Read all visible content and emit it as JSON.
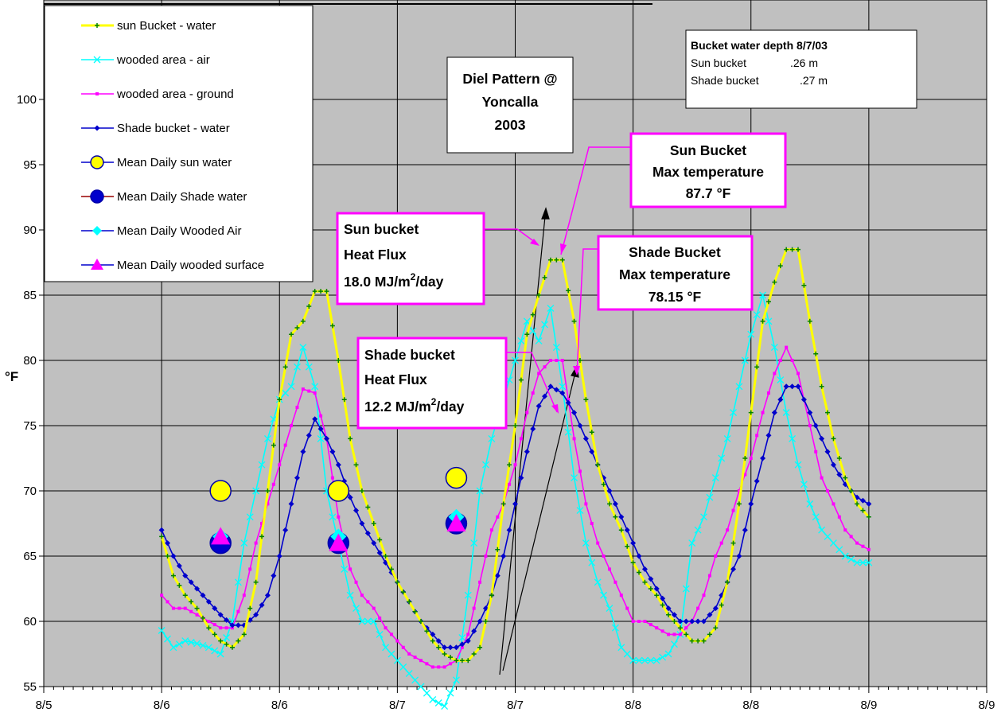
{
  "chart_data": {
    "type": "line",
    "title": "",
    "xlabel": "",
    "ylabel": "°F",
    "ylim": [
      55,
      100
    ],
    "yticks": [
      55,
      60,
      65,
      70,
      75,
      80,
      85,
      90,
      95,
      100
    ],
    "xlim": [
      0,
      4
    ],
    "xticks": [
      0,
      0.5,
      1,
      1.5,
      2,
      2.5,
      3,
      3.5,
      4
    ],
    "xtick_labels": [
      "8/5",
      "8/6",
      "8/6",
      "8/7",
      "8/7",
      "8/8",
      "8/8",
      "8/9",
      "8/9"
    ],
    "grid": true,
    "plot_background": "#c0c0c0",
    "legend_position": "top-left",
    "series": [
      {
        "name": "sun Bucket - water",
        "color": "#ffff00",
        "marker_color": "#008000",
        "x": [
          0.5,
          0.55,
          0.6,
          0.65,
          0.7,
          0.75,
          0.8,
          0.85,
          0.9,
          0.95,
          1.0,
          1.05,
          1.1,
          1.15,
          1.2,
          1.25,
          1.3,
          1.35,
          1.4,
          1.45,
          1.5,
          1.55,
          1.6,
          1.65,
          1.7,
          1.75,
          1.8,
          1.85,
          1.9,
          1.95,
          2.0,
          2.05,
          2.1,
          2.15,
          2.2,
          2.25,
          2.3,
          2.35,
          2.4,
          2.45,
          2.5,
          2.55,
          2.6,
          2.65,
          2.7,
          2.75,
          2.8,
          2.85,
          2.9,
          2.95,
          3.0,
          3.05,
          3.1,
          3.15,
          3.2,
          3.25,
          3.3,
          3.35,
          3.4,
          3.45,
          3.5
        ],
        "y": [
          66.5,
          63.5,
          62,
          61,
          59.5,
          58.5,
          58,
          59,
          63,
          70,
          77,
          82,
          83,
          85.3,
          85.3,
          80,
          74,
          70,
          67.5,
          65,
          63,
          61.5,
          60,
          58.5,
          57.5,
          57,
          57,
          58,
          62,
          69,
          75,
          82,
          85,
          87.7,
          87.7,
          83,
          77,
          72,
          69,
          67,
          64.5,
          63,
          62,
          60.5,
          59.5,
          58.5,
          58.5,
          59.5,
          63,
          69,
          76,
          83,
          86,
          88.5,
          88.5,
          83,
          78,
          74,
          71,
          69,
          68
        ]
      },
      {
        "name": "wooded area - air",
        "color": "#00ffff",
        "marker_color": "#00ffff",
        "x": [
          0.5,
          0.55,
          0.6,
          0.65,
          0.7,
          0.75,
          0.8,
          0.85,
          0.9,
          0.95,
          1.0,
          1.05,
          1.1,
          1.15,
          1.2,
          1.25,
          1.3,
          1.35,
          1.4,
          1.45,
          1.5,
          1.55,
          1.6,
          1.65,
          1.7,
          1.75,
          1.8,
          1.85,
          1.9,
          1.95,
          2.0,
          2.05,
          2.1,
          2.15,
          2.2,
          2.25,
          2.3,
          2.35,
          2.4,
          2.45,
          2.5,
          2.55,
          2.6,
          2.65,
          2.7,
          2.75,
          2.8,
          2.85,
          2.9,
          2.95,
          3.0,
          3.05,
          3.1,
          3.15,
          3.2,
          3.25,
          3.3,
          3.35,
          3.4,
          3.45,
          3.5
        ],
        "y": [
          59.3,
          58,
          58.5,
          58.3,
          58,
          57.5,
          60,
          66,
          70,
          74,
          77,
          78,
          81,
          78,
          70,
          66,
          62,
          60,
          60,
          58,
          57,
          56,
          55,
          54,
          53.5,
          55.5,
          62,
          70,
          74,
          77,
          80,
          83,
          81.5,
          84,
          78,
          71,
          66,
          63,
          61,
          58,
          57,
          57,
          57,
          57.5,
          59,
          66,
          68,
          71,
          74,
          78,
          82,
          85,
          81,
          76,
          72,
          69,
          67,
          66,
          65,
          64.5,
          64.5
        ]
      },
      {
        "name": "wooded area - ground",
        "color": "#ff00ff",
        "marker_color": "#ff00ff",
        "x": [
          0.5,
          0.55,
          0.6,
          0.65,
          0.7,
          0.75,
          0.8,
          0.85,
          0.9,
          0.95,
          1.0,
          1.05,
          1.1,
          1.15,
          1.2,
          1.25,
          1.3,
          1.35,
          1.4,
          1.45,
          1.5,
          1.55,
          1.6,
          1.65,
          1.7,
          1.75,
          1.8,
          1.85,
          1.9,
          1.95,
          2.0,
          2.05,
          2.1,
          2.15,
          2.2,
          2.25,
          2.3,
          2.35,
          2.4,
          2.45,
          2.5,
          2.55,
          2.6,
          2.65,
          2.7,
          2.75,
          2.8,
          2.85,
          2.9,
          2.95,
          3.0,
          3.05,
          3.1,
          3.15,
          3.2,
          3.25,
          3.3,
          3.35,
          3.4,
          3.45,
          3.5
        ],
        "y": [
          62,
          61,
          61,
          60.5,
          60,
          59.5,
          59.5,
          62,
          66,
          69,
          72,
          75,
          77.8,
          77.5,
          74,
          68,
          64,
          62,
          61,
          59.5,
          58.5,
          57.5,
          57,
          56.5,
          56.5,
          57,
          59,
          63,
          67,
          69,
          72,
          76,
          79,
          80,
          80,
          74,
          69,
          66,
          64,
          62,
          60,
          60,
          59.5,
          59,
          59,
          60,
          62,
          65,
          67,
          70,
          72.5,
          76,
          79,
          81,
          79,
          75,
          71,
          69,
          67,
          66,
          65.5
        ]
      },
      {
        "name": "Shade bucket - water",
        "color": "#0000cc",
        "marker_color": "#0000cc",
        "x": [
          0.5,
          0.55,
          0.6,
          0.65,
          0.7,
          0.75,
          0.8,
          0.85,
          0.9,
          0.95,
          1.0,
          1.05,
          1.1,
          1.15,
          1.2,
          1.25,
          1.3,
          1.35,
          1.4,
          1.45,
          1.5,
          1.55,
          1.6,
          1.65,
          1.7,
          1.75,
          1.8,
          1.85,
          1.9,
          1.95,
          2.0,
          2.05,
          2.1,
          2.15,
          2.2,
          2.25,
          2.3,
          2.35,
          2.4,
          2.45,
          2.5,
          2.55,
          2.6,
          2.65,
          2.7,
          2.75,
          2.8,
          2.85,
          2.9,
          2.95,
          3.0,
          3.05,
          3.1,
          3.15,
          3.2,
          3.25,
          3.3,
          3.35,
          3.4,
          3.45,
          3.5
        ],
        "y": [
          67,
          65,
          63.5,
          62.5,
          61.5,
          60.5,
          59.7,
          59.7,
          60.5,
          62,
          65,
          69,
          73,
          75.5,
          74,
          72,
          69.5,
          67.5,
          66,
          64.5,
          63,
          61.5,
          60,
          59,
          58,
          58,
          58.5,
          60,
          62,
          65,
          69,
          73,
          76.5,
          78,
          77.5,
          76,
          74,
          72,
          70,
          68,
          66,
          64,
          62.5,
          61,
          60,
          60,
          60,
          61,
          63,
          65,
          69,
          72.5,
          76,
          78,
          78,
          76,
          74,
          72,
          70.5,
          69.5,
          69
        ]
      }
    ],
    "mean_points": [
      {
        "name": "Mean Daily sun water",
        "color": "#ffff00",
        "marker": "circle",
        "x": [
          0.75,
          1.25,
          1.75
        ],
        "y": [
          70,
          70,
          71
        ]
      },
      {
        "name": "Mean Daily Shade water",
        "color": "#0000cc",
        "marker": "circle",
        "x": [
          0.75,
          1.25,
          1.75
        ],
        "y": [
          66,
          66,
          67.5
        ]
      },
      {
        "name": "Mean Daily Wooded Air",
        "color": "#00ffff",
        "marker": "diamond",
        "x": [
          0.75,
          1.25,
          1.75
        ],
        "y": [
          66.5,
          66.5,
          68
        ]
      },
      {
        "name": "Mean Daily wooded surface",
        "color": "#ff00ff",
        "marker": "triangle",
        "x": [
          0.75,
          1.25,
          1.75
        ],
        "y": [
          66.5,
          66,
          67.5
        ]
      }
    ],
    "annotations": {
      "title_box": [
        "Diel Pattern @",
        "Yoncalla",
        "2003"
      ],
      "sun_max": [
        "Sun Bucket",
        "Max temperature",
        "87.7 °F"
      ],
      "shade_max": [
        "Shade Bucket",
        "Max temperature",
        "78.15 °F"
      ],
      "sun_flux": {
        "line1": "Sun bucket",
        "line2": "Heat Flux",
        "value": "18.0 MJ/m",
        "sup": "2",
        "unit": "/day"
      },
      "shade_flux": {
        "line1": "Shade bucket",
        "line2": "Heat Flux",
        "value": "12.2 MJ/m",
        "sup": "2",
        "unit": "/day"
      },
      "depth_box": {
        "title": "Bucket water depth 8/7/03",
        "rows": [
          {
            "label": "Sun bucket",
            "value": ".26 m"
          },
          {
            "label": "Shade bucket",
            "value": ".27 m"
          }
        ]
      }
    }
  }
}
